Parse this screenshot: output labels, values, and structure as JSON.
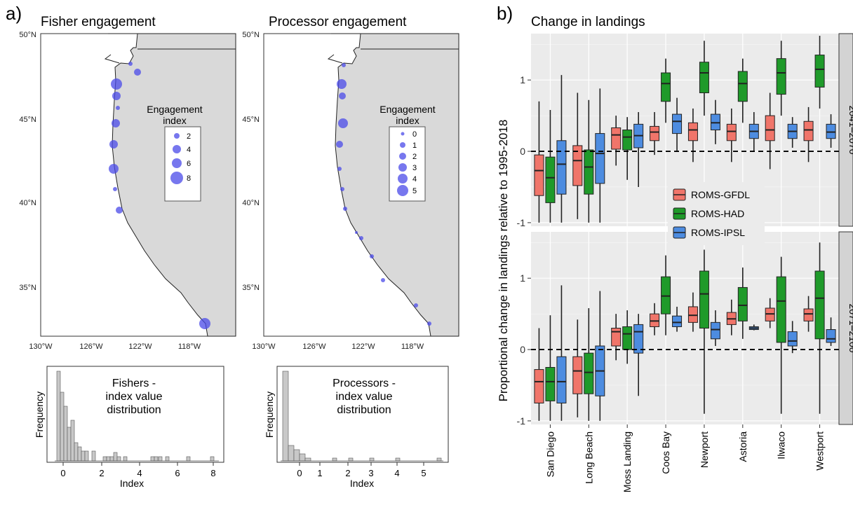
{
  "panel_a_label": "a)",
  "panel_b_label": "b)",
  "colors": {
    "land": "#d9d9d9",
    "bubble": "#4a4ae8",
    "gfdl": "#f0756a",
    "had": "#1f9a2a",
    "ipsl": "#4d8ce0",
    "strip": "#d3d3d3",
    "panel_bg": "#ebebeb",
    "hist_bar": "#c8c8c8"
  },
  "maps": [
    {
      "id": "fisher",
      "title": "Fisher engagement",
      "legend_title": [
        "Engagement",
        "index"
      ],
      "legend_values": [
        "2",
        "4",
        "6",
        "8"
      ],
      "lat_labels": [
        "50°N",
        "45°N",
        "40°N",
        "35°N"
      ],
      "lon_labels": [
        "130°W",
        "126°W",
        "122°W",
        "118°W"
      ]
    },
    {
      "id": "processor",
      "title": "Processor engagement",
      "legend_title": [
        "Engagement",
        "index"
      ],
      "legend_values": [
        "0",
        "1",
        "2",
        "3",
        "4",
        "5"
      ],
      "lat_labels": [
        "50°N",
        "45°N",
        "40°N",
        "35°N"
      ],
      "lon_labels": [
        "130°W",
        "126°W",
        "122°W",
        "118°W"
      ]
    }
  ],
  "histograms": [
    {
      "id": "fisher-hist",
      "title": [
        "Fishers -",
        "index value",
        "distribution"
      ],
      "xlabel": "Index",
      "ylabel": "Frequency",
      "x_ticks": [
        "0",
        "2",
        "4",
        "6",
        "8"
      ]
    },
    {
      "id": "processor-hist",
      "title": [
        "Processors -",
        "index value",
        "distribution"
      ],
      "xlabel": "Index",
      "ylabel": "Frequency",
      "x_ticks": [
        "0",
        "1",
        "2",
        "3",
        "4",
        "5"
      ]
    }
  ],
  "chart_data": {
    "type": "boxplot",
    "title": "Change in landings",
    "ylabel": "Proportional change in landings relative to 1995-2018",
    "categories": [
      "San Diego",
      "Long Beach",
      "Moss Landing",
      "Coos Bay",
      "Newport",
      "Astoria",
      "Ilwaco",
      "Westport"
    ],
    "series_names": [
      "ROMS-GFDL",
      "ROMS-HAD",
      "ROMS-IPSL"
    ],
    "ylim": [
      -1.05,
      1.65
    ],
    "y_ticks": [
      -1,
      0,
      1
    ],
    "reference_line": 0,
    "legend_position": "inside-middle",
    "facets": [
      {
        "label": "2041–2070",
        "boxes": [
          [
            [
              -1.0,
              -0.62,
              -0.27,
              -0.05,
              0.7
            ],
            [
              -1.0,
              -0.72,
              -0.37,
              -0.08,
              0.58
            ],
            [
              -1.0,
              -0.6,
              -0.18,
              0.15,
              1.07
            ]
          ],
          [
            [
              -0.95,
              -0.48,
              -0.13,
              0.08,
              0.82
            ],
            [
              -1.0,
              -0.6,
              -0.22,
              0.02,
              0.72
            ],
            [
              -1.0,
              -0.45,
              -0.03,
              0.25,
              0.88
            ]
          ],
          [
            [
              -0.2,
              0.03,
              0.23,
              0.33,
              0.5
            ],
            [
              -0.4,
              0.02,
              0.2,
              0.3,
              0.48
            ],
            [
              -0.5,
              0.05,
              0.22,
              0.38,
              0.55
            ]
          ],
          [
            [
              -0.05,
              0.15,
              0.27,
              0.35,
              0.55
            ],
            [
              0.4,
              0.7,
              0.95,
              1.1,
              1.3
            ],
            [
              0.0,
              0.25,
              0.42,
              0.52,
              0.75
            ]
          ],
          [
            [
              -0.15,
              0.15,
              0.3,
              0.4,
              0.6
            ],
            [
              0.5,
              0.82,
              1.1,
              1.25,
              1.55
            ],
            [
              0.1,
              0.3,
              0.4,
              0.52,
              0.72
            ]
          ],
          [
            [
              -0.15,
              0.15,
              0.28,
              0.38,
              0.6
            ],
            [
              0.4,
              0.7,
              0.95,
              1.12,
              1.3
            ],
            [
              0.0,
              0.18,
              0.28,
              0.38,
              0.55
            ]
          ],
          [
            [
              -0.25,
              0.15,
              0.3,
              0.5,
              0.82
            ],
            [
              0.5,
              0.8,
              1.1,
              1.3,
              1.55
            ],
            [
              0.05,
              0.18,
              0.28,
              0.38,
              0.48
            ]
          ],
          [
            [
              -0.15,
              0.15,
              0.3,
              0.42,
              0.62
            ],
            [
              0.6,
              0.9,
              1.15,
              1.35,
              1.62
            ],
            [
              0.05,
              0.18,
              0.27,
              0.38,
              0.52
            ]
          ]
        ]
      },
      {
        "label": "2071–2100",
        "boxes": [
          [
            [
              -1.0,
              -0.75,
              -0.45,
              -0.28,
              0.3
            ],
            [
              -1.0,
              -0.72,
              -0.45,
              -0.25,
              0.48
            ],
            [
              -1.0,
              -0.75,
              -0.45,
              -0.1,
              0.9
            ]
          ],
          [
            [
              -0.95,
              -0.62,
              -0.3,
              -0.1,
              0.42
            ],
            [
              -1.0,
              -0.62,
              -0.32,
              -0.05,
              0.58
            ],
            [
              -1.0,
              -0.65,
              -0.3,
              0.05,
              0.82
            ]
          ],
          [
            [
              -0.15,
              0.05,
              0.25,
              0.3,
              0.5
            ],
            [
              -0.2,
              0.0,
              0.22,
              0.32,
              0.55
            ],
            [
              -0.65,
              -0.05,
              0.25,
              0.35,
              0.5
            ]
          ],
          [
            [
              0.2,
              0.32,
              0.4,
              0.5,
              0.65
            ],
            [
              0.2,
              0.5,
              0.75,
              1.02,
              1.32
            ],
            [
              0.25,
              0.32,
              0.38,
              0.47,
              0.6
            ]
          ],
          [
            [
              0.25,
              0.38,
              0.48,
              0.6,
              0.8
            ],
            [
              -0.9,
              0.3,
              0.78,
              1.1,
              1.4
            ],
            [
              0.05,
              0.15,
              0.28,
              0.38,
              0.55
            ]
          ],
          [
            [
              0.2,
              0.35,
              0.43,
              0.52,
              0.7
            ],
            [
              0.15,
              0.4,
              0.62,
              0.87,
              1.15
            ],
            [
              0.27,
              0.28,
              0.3,
              0.32,
              0.35
            ]
          ],
          [
            [
              0.3,
              0.4,
              0.5,
              0.58,
              0.72
            ],
            [
              -0.9,
              0.1,
              0.68,
              1.02,
              1.3
            ],
            [
              -0.05,
              0.05,
              0.12,
              0.25,
              0.4
            ]
          ],
          [
            [
              0.25,
              0.4,
              0.5,
              0.57,
              0.75
            ],
            [
              -0.9,
              0.15,
              0.72,
              1.1,
              1.5
            ],
            [
              0.05,
              0.1,
              0.15,
              0.28,
              0.45
            ]
          ]
        ]
      }
    ]
  }
}
